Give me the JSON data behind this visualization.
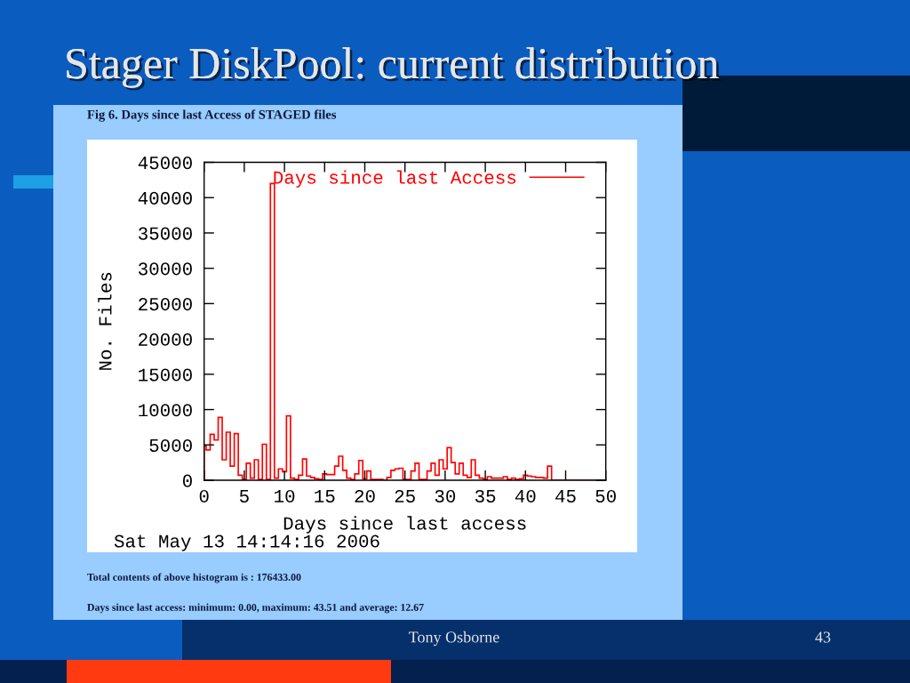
{
  "chart_data": {
    "type": "histogram",
    "title": "Stager DiskPool: current distribution",
    "subtitle": "Fig 6. Days since last Access of STAGED files",
    "xlabel": "Days since last access",
    "ylabel": "No. Files",
    "bins": [
      0,
      0.25,
      0.75,
      1.25,
      1.75,
      2.25,
      2.75,
      3.25,
      3.75,
      4.25,
      4.75,
      5.25,
      5.75,
      6.25,
      6.75,
      7.25,
      7.75,
      8.25,
      8.75,
      9.25,
      9.75,
      10.25,
      10.75,
      11.25,
      11.75,
      12.25,
      12.75,
      13.25,
      13.75,
      14.25,
      14.75,
      15.25,
      15.75,
      16.25,
      16.75,
      17.25,
      17.75,
      18.25,
      18.75,
      19.25,
      19.75,
      20.25,
      20.75,
      21.25,
      21.75,
      22.25,
      22.75,
      23.25,
      23.75,
      24.25,
      24.75,
      25.25,
      25.75,
      26.25,
      26.75,
      27.25,
      27.75,
      28.25,
      28.75,
      29.25,
      29.75,
      30.25,
      30.75,
      31.25,
      31.75,
      32.25,
      32.75,
      33.25,
      33.75,
      34.25,
      34.75,
      35.25,
      35.75,
      36.25,
      36.75,
      37.25,
      37.75,
      38.25,
      38.75,
      39.25,
      39.75,
      40.25,
      40.75,
      41.25,
      41.75,
      42.25,
      42.75,
      43.25,
      50
    ],
    "series": [
      {
        "name": "Days since last Access",
        "color": "#ff0000",
        "values": [
          4900,
          4300,
          6500,
          5700,
          8900,
          2900,
          6800,
          2000,
          6600,
          700,
          100,
          2400,
          300,
          2900,
          100,
          5100,
          100,
          42000,
          300,
          1600,
          1200,
          9100,
          300,
          100,
          700,
          3000,
          600,
          400,
          200,
          100,
          900,
          800,
          800,
          2000,
          3400,
          1400,
          300,
          100,
          900,
          2800,
          200,
          1300,
          100,
          100,
          100,
          0,
          400,
          1400,
          1600,
          1700,
          100,
          100,
          1300,
          2400,
          100,
          100,
          1300,
          2400,
          700,
          2900,
          1600,
          4600,
          2500,
          900,
          2400,
          700,
          400,
          2900,
          700,
          300,
          100,
          500,
          300,
          300,
          300,
          500,
          100,
          300,
          100,
          200,
          700,
          600,
          500,
          400,
          400,
          300,
          2000,
          0
        ]
      }
    ],
    "xlim": [
      0,
      50
    ],
    "ylim": [
      0,
      45000
    ],
    "xticks": [
      0,
      5,
      10,
      15,
      20,
      25,
      30,
      35,
      40,
      45,
      50
    ],
    "yticks": [
      0,
      5000,
      10000,
      15000,
      20000,
      25000,
      30000,
      35000,
      40000,
      45000
    ],
    "legend": "top right",
    "annotations": [
      "Sat May 13 14:14:16 2006",
      "Total contents of above histogram is : 176433.00",
      "Days since last access: minimum: 0.00, maximum: 43.51 and average: 12.67",
      "Tony Osborne",
      "43"
    ]
  }
}
